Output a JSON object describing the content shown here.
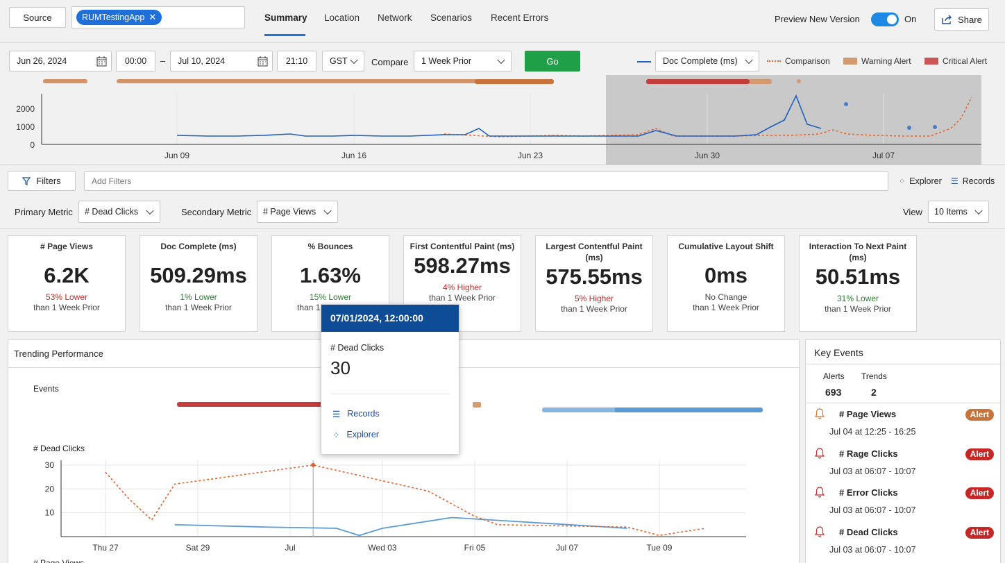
{
  "header": {
    "source_label": "Source",
    "app_chip": "RUMTestingApp",
    "tabs": [
      {
        "label": "Summary",
        "active": true
      },
      {
        "label": "Location"
      },
      {
        "label": "Network"
      },
      {
        "label": "Scenarios"
      },
      {
        "label": "Recent Errors"
      }
    ],
    "preview_label": "Preview New Version",
    "toggle_state": "On",
    "share_label": "Share"
  },
  "timebar": {
    "start_date": "Jun 26, 2024",
    "start_time": "00:00",
    "dash": "–",
    "end_date": "Jul 10, 2024",
    "end_time": "21:10",
    "timezone": "GST",
    "compare_label": "Compare",
    "compare_value": "1 Week Prior",
    "go_label": "Go",
    "metric_value": "Doc Complete (ms)",
    "legend": {
      "comparison": "Comparison",
      "warning": "Warning Alert",
      "critical": "Critical Alert"
    }
  },
  "overview_chart": {
    "y_ticks": [
      "2000",
      "1000",
      "0"
    ],
    "x_ticks": [
      "Jun 09",
      "Jun 16",
      "Jun 23",
      "Jun 30",
      "Jul 07"
    ]
  },
  "filters": {
    "filters_label": "Filters",
    "placeholder": "Add Filters",
    "explorer_label": "Explorer",
    "records_label": "Records"
  },
  "metrics_bar": {
    "primary_label": "Primary Metric",
    "primary_value": "# Dead Clicks",
    "secondary_label": "Secondary Metric",
    "secondary_value": "# Page Views",
    "view_label": "View",
    "view_value": "10 Items"
  },
  "cards": [
    {
      "title": "# Page Views",
      "value": "6.2K",
      "delta": "53% Lower",
      "trend": "red",
      "sub": "than 1 Week Prior"
    },
    {
      "title": "Doc Complete (ms)",
      "value": "509.29ms",
      "delta": "1% Lower",
      "trend": "green",
      "sub": "than 1 Week Prior"
    },
    {
      "title": "% Bounces",
      "value": "1.63%",
      "delta": "15% Lower",
      "trend": "green",
      "sub": "than 1 Week Prior"
    },
    {
      "title": "First Contentful Paint (ms)",
      "value": "598.27ms",
      "delta": "4% Higher",
      "trend": "red",
      "sub": "than 1 Week Prior"
    },
    {
      "title": "Largest Contentful Paint (ms)",
      "value": "575.55ms",
      "delta": "5% Higher",
      "trend": "red",
      "sub": "than 1 Week Prior"
    },
    {
      "title": "Cumulative Layout Shift",
      "value": "0ms",
      "delta": "No Change",
      "trend": "gray",
      "sub": "than 1 Week Prior"
    },
    {
      "title": "Interaction To Next Paint (ms)",
      "value": "50.51ms",
      "delta": "31% Lower",
      "trend": "green",
      "sub": "than 1 Week Prior"
    }
  ],
  "trending": {
    "title": "Trending Performance",
    "events_label": "Events",
    "chart_title": "# Dead Clicks",
    "next_chart_title": "# Page Views"
  },
  "chart_data": {
    "type": "line",
    "title": "# Dead Clicks",
    "x": [
      "Thu 27",
      "Sat 29",
      "Jul",
      "Wed 03",
      "Fri 05",
      "Jul 07",
      "Tue 09"
    ],
    "y_ticks": [
      30,
      20,
      10
    ],
    "ylim": [
      0,
      32
    ],
    "series": [
      {
        "kind": "current",
        "points": [
          [
            1.5,
            5
          ],
          [
            3.5,
            4
          ],
          [
            5.0,
            3.5
          ],
          [
            5.5,
            0.5
          ],
          [
            6.0,
            3.5
          ],
          [
            7.5,
            8
          ],
          [
            11.3,
            3.5
          ]
        ]
      },
      {
        "kind": "comparison",
        "points": [
          [
            0,
            27
          ],
          [
            0.5,
            16
          ],
          [
            1,
            7
          ],
          [
            1.5,
            22
          ],
          [
            4.5,
            30
          ],
          [
            7,
            19
          ],
          [
            8,
            8.5
          ],
          [
            8.5,
            5
          ],
          [
            11.3,
            4
          ],
          [
            12,
            0.5
          ],
          [
            13,
            3.5
          ]
        ]
      }
    ],
    "highlight_x": 4.5
  },
  "tooltip": {
    "header": "07/01/2024, 12:00:00",
    "metric": "# Dead Clicks",
    "value": "30",
    "records": "Records",
    "explorer": "Explorer"
  },
  "key_events": {
    "title": "Key Events",
    "alerts_label": "Alerts",
    "alerts_value": "693",
    "trends_label": "Trends",
    "trends_value": "2",
    "items": [
      {
        "name": "# Page Views",
        "time": "Jul 04 at 12:25 - 16:25",
        "badge": "Alert",
        "color": "#c8733a"
      },
      {
        "name": "# Rage Clicks",
        "time": "Jul 03 at 06:07 - 10:07",
        "badge": "Alert",
        "color": "#c62828"
      },
      {
        "name": "# Error Clicks",
        "time": "Jul 03 at 06:07 - 10:07",
        "badge": "Alert",
        "color": "#c62828"
      },
      {
        "name": "# Dead Clicks",
        "time": "Jul 03 at 06:07 - 10:07",
        "badge": "Alert",
        "color": "#c62828"
      }
    ]
  }
}
